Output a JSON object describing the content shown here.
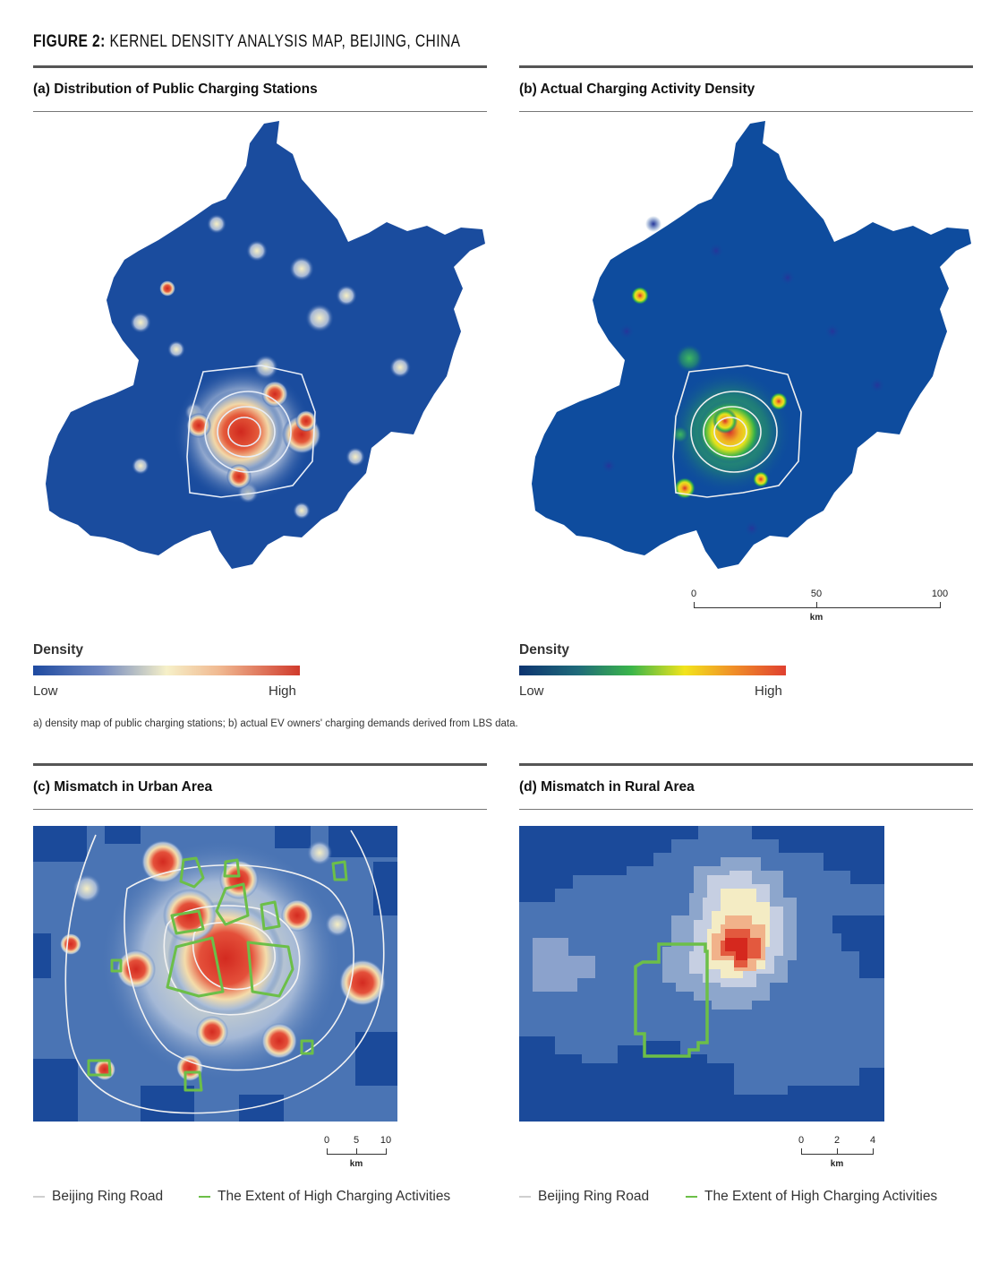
{
  "figure": {
    "title_bold": "FIGURE 2:",
    "title_rest": " KERNEL DENSITY ANALYSIS MAP, BEIJING, CHINA"
  },
  "panels": {
    "a": {
      "title": "(a) Distribution of Public Charging Stations"
    },
    "b": {
      "title": "(b) Actual Charging Activity Density"
    },
    "c": {
      "title": "(c) Mismatch in Urban Area"
    },
    "d": {
      "title": "(d) Mismatch in Rural Area"
    }
  },
  "legend_a": {
    "title": "Density",
    "low": "Low",
    "high": "High"
  },
  "legend_b": {
    "title": "Density",
    "low": "Low",
    "high": "High"
  },
  "footnote": "a) density map of public charging stations; b) actual EV owners' charging demands derived from LBS data.",
  "scalebars": {
    "b": {
      "ticks": [
        "0",
        "50",
        "100"
      ],
      "unit": "km"
    },
    "c": {
      "ticks": [
        "0",
        "5",
        "10"
      ],
      "unit": "km"
    },
    "d": {
      "ticks": [
        "0",
        "2",
        "4"
      ],
      "unit": "km"
    }
  },
  "keys": {
    "ring_road": "Beijing Ring Road",
    "high_activity": "The Extent of High Charging Activities"
  },
  "colors": {
    "map_blue": "#0e4c9e",
    "ring_road": "#f2f2f2",
    "high_activity_outline": "#6cbf48",
    "ramp_a": [
      "#1e4aa0",
      "#f6f0c8",
      "#d03a2c"
    ],
    "ramp_b": [
      "#0d3470",
      "#3ab54a",
      "#f2e41c",
      "#e04030"
    ]
  }
}
